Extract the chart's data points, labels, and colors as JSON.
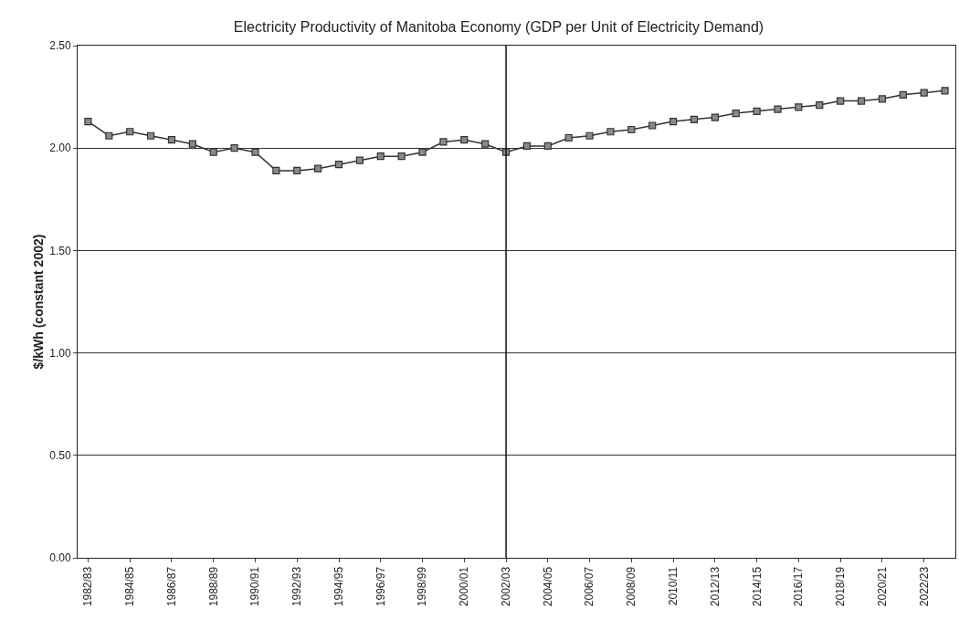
{
  "chart_data": {
    "type": "line",
    "title": "Electricity Productivity of Manitoba Economy (GDP per Unit of Electricity Demand)",
    "ylabel": "$/kWh (constant 2002)",
    "categories": [
      "1982/83",
      null,
      "1984/85",
      null,
      "1986/87",
      null,
      "1988/89",
      null,
      "1990/91",
      null,
      "1992/93",
      null,
      "1994/95",
      null,
      "1996/97",
      null,
      "1998/99",
      null,
      "2000/01",
      null,
      "2002/03",
      null,
      "2004/05",
      null,
      "2006/07",
      null,
      "2008/09",
      null,
      "2010/11",
      null,
      "2012/13",
      null,
      "2014/15",
      null,
      "2016/17",
      null,
      "2018/19",
      null,
      "2020/21",
      null,
      "2022/23",
      null
    ],
    "series": [
      {
        "color": "#333333",
        "values": [
          2.13,
          2.06,
          2.08,
          2.06,
          2.04,
          2.02,
          1.98,
          2.0,
          1.98,
          1.89,
          1.89,
          1.9,
          1.92,
          1.94,
          1.96,
          1.96,
          1.98,
          2.03,
          2.04,
          2.02,
          1.98,
          2.01,
          2.01,
          2.05,
          2.06,
          2.08,
          2.09,
          2.11,
          2.13,
          2.14,
          2.15,
          2.17,
          2.18,
          2.19,
          2.2,
          2.21,
          2.23,
          2.23,
          2.24,
          2.26,
          2.27,
          2.28
        ]
      }
    ],
    "ylim": [
      0,
      2.5
    ],
    "yticks": [
      {
        "value": 0,
        "label": "0.00"
      },
      {
        "value": 0.5,
        "label": "0.50"
      },
      {
        "value": 1,
        "label": "1.00"
      },
      {
        "value": 1.5,
        "label": "1.50"
      },
      {
        "value": 2,
        "label": "2.00"
      },
      {
        "value": 2.5,
        "label": "2.50"
      }
    ],
    "ref_lines": [
      {
        "axis": "x",
        "value": "2002/03",
        "color": "#111111"
      }
    ],
    "grid": "y",
    "marker": "square",
    "line_style": "solid"
  }
}
